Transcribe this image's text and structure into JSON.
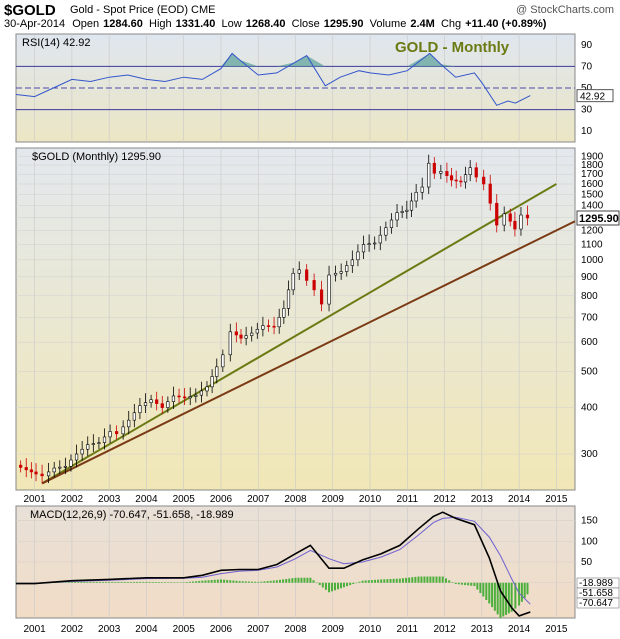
{
  "header": {
    "symbol": "$GOLD",
    "description": "Gold - Spot Price (EOD)",
    "exchange": "CME",
    "watermark": "@ StockCharts.com",
    "date": "30-Apr-2014",
    "open_label": "Open",
    "open": "1284.60",
    "high_label": "High",
    "high": "1331.40",
    "low_label": "Low",
    "low": "1268.40",
    "close_label": "Close",
    "close": "1295.90",
    "volume_label": "Volume",
    "volume": "2.4M",
    "chg_label": "Chg",
    "chg": "+11.40 (+0.89%)"
  },
  "colors": {
    "panel_bg_top": "#dfe6ef",
    "panel_bg_bottom": "#ece6c4",
    "price_bg_top": "#e3e8ee",
    "price_bg_bottom": "#f1e7b6",
    "macd_bg_top": "#e8e0d8",
    "macd_bg_bottom": "#f1dcc6",
    "up_candle": "#000000",
    "down_candle": "#cc0000",
    "rsi_line": "#3355cc",
    "rsi_fill": "#5aa09a",
    "trendline_upper": "#6b7a12",
    "trendline_lower": "#7a3a14",
    "macd_line": "#000000",
    "signal_line": "#6f5fd0",
    "histogram": "#4caf3c",
    "annotation": "#6b7a12"
  },
  "chart_data": [
    {
      "type": "line",
      "panel": "RSI",
      "legend": "RSI(14) 42.92",
      "annotation": "GOLD - Monthly",
      "current_label": "42.92",
      "ylim": [
        0,
        100
      ],
      "yticks": [
        10,
        30,
        50,
        70,
        90
      ],
      "reference_lines": [
        30,
        50,
        70
      ],
      "x": [
        2000.5,
        2001.0,
        2001.5,
        2002.0,
        2002.5,
        2003.0,
        2003.5,
        2004.0,
        2004.5,
        2005.0,
        2005.5,
        2006.0,
        2006.3,
        2006.5,
        2007.0,
        2007.5,
        2008.0,
        2008.3,
        2008.8,
        2009.2,
        2009.7,
        2010.0,
        2010.5,
        2011.0,
        2011.6,
        2011.9,
        2012.3,
        2012.8,
        2013.0,
        2013.4,
        2013.7,
        2013.9,
        2014.3
      ],
      "values": [
        44,
        42,
        50,
        58,
        56,
        60,
        62,
        58,
        56,
        60,
        58,
        68,
        82,
        76,
        62,
        64,
        74,
        80,
        52,
        60,
        66,
        64,
        62,
        66,
        82,
        72,
        60,
        64,
        55,
        34,
        38,
        36,
        43
      ]
    },
    {
      "type": "candlestick",
      "panel": "price",
      "legend": "$GOLD (Monthly) 1295.90",
      "current_label": "1295.90",
      "scale": "log",
      "ylim": [
        240,
        2000
      ],
      "yticks": [
        300,
        400,
        500,
        600,
        700,
        800,
        900,
        1000,
        1100,
        1200,
        1300,
        1400,
        1500,
        1600,
        1700,
        1800,
        1900
      ],
      "x_ticks": [
        "2001",
        "2002",
        "2003",
        "2004",
        "2005",
        "2006",
        "2007",
        "2008",
        "2009",
        "2010",
        "2011",
        "2012",
        "2013",
        "2014",
        "2015"
      ],
      "xlim": [
        2000.5,
        2015.5
      ],
      "x": [
        2000.55,
        2000.85,
        2001.1,
        2001.3,
        2001.6,
        2001.9,
        2002.2,
        2002.5,
        2002.8,
        2003.1,
        2003.3,
        2003.6,
        2003.9,
        2004.2,
        2004.5,
        2004.8,
        2005.1,
        2005.4,
        2005.7,
        2005.95,
        2006.15,
        2006.35,
        2006.6,
        2006.9,
        2007.2,
        2007.5,
        2007.75,
        2008.0,
        2008.2,
        2008.4,
        2008.6,
        2008.8,
        2009.0,
        2009.3,
        2009.6,
        2009.9,
        2010.2,
        2010.5,
        2010.8,
        2011.05,
        2011.3,
        2011.5,
        2011.65,
        2011.8,
        2012.0,
        2012.25,
        2012.5,
        2012.75,
        2012.95,
        2013.15,
        2013.3,
        2013.5,
        2013.7,
        2013.95,
        2014.15,
        2014.3
      ],
      "values": [
        280,
        272,
        265,
        262,
        275,
        278,
        300,
        318,
        322,
        345,
        340,
        370,
        405,
        420,
        400,
        430,
        425,
        432,
        455,
        515,
        555,
        640,
        615,
        635,
        665,
        660,
        740,
        920,
        940,
        880,
        830,
        760,
        910,
        930,
        1000,
        1100,
        1110,
        1220,
        1340,
        1360,
        1520,
        1570,
        1820,
        1710,
        1730,
        1640,
        1620,
        1770,
        1670,
        1600,
        1420,
        1240,
        1330,
        1210,
        1320,
        1296
      ]
    },
    {
      "type": "line",
      "panel": "trendlines",
      "series": [
        {
          "x": [
            2001.2,
            2015.0
          ],
          "values": [
            250,
            1600
          ]
        },
        {
          "x": [
            2001.2,
            2015.5
          ],
          "values": [
            250,
            1270
          ]
        }
      ]
    },
    {
      "type": "line",
      "panel": "MACD",
      "legend": "MACD(12,26,9) -70.647, -51.658, -18.989",
      "current_labels": [
        "-18.989",
        "-51.658",
        "-70.647"
      ],
      "ylim": [
        -85,
        185
      ],
      "yticks": [
        0,
        50,
        100,
        150
      ],
      "x_ticks": [
        "2001",
        "2002",
        "2003",
        "2004",
        "2005",
        "2006",
        "2007",
        "2008",
        "2009",
        "2010",
        "2011",
        "2012",
        "2013",
        "2014",
        "2015"
      ],
      "x": [
        2000.5,
        2001.0,
        2002.0,
        2003.0,
        2004.0,
        2005.0,
        2005.5,
        2006.0,
        2006.5,
        2007.0,
        2007.5,
        2008.0,
        2008.4,
        2008.9,
        2009.3,
        2009.8,
        2010.3,
        2010.8,
        2011.3,
        2011.7,
        2011.95,
        2012.3,
        2012.8,
        2013.2,
        2013.5,
        2013.8,
        2014.0,
        2014.3
      ],
      "series": [
        {
          "name": "MACD",
          "values": [
            -2,
            -2,
            5,
            8,
            12,
            12,
            18,
            30,
            32,
            32,
            44,
            70,
            90,
            35,
            35,
            55,
            70,
            90,
            130,
            160,
            170,
            155,
            140,
            60,
            -20,
            -60,
            -80,
            -70.647
          ]
        },
        {
          "name": "Signal",
          "values": [
            -1,
            -1,
            3,
            6,
            10,
            11,
            13,
            22,
            28,
            30,
            38,
            58,
            78,
            58,
            46,
            50,
            62,
            80,
            115,
            145,
            155,
            158,
            148,
            110,
            65,
            10,
            -25,
            -51.658
          ]
        },
        {
          "name": "Histogram",
          "values": [
            -1,
            -1,
            2,
            2,
            2,
            1,
            5,
            8,
            4,
            2,
            6,
            12,
            12,
            -23,
            -11,
            5,
            8,
            10,
            15,
            15,
            15,
            -3,
            -8,
            -50,
            -85,
            -70,
            -55,
            -18.989
          ]
        }
      ]
    }
  ]
}
